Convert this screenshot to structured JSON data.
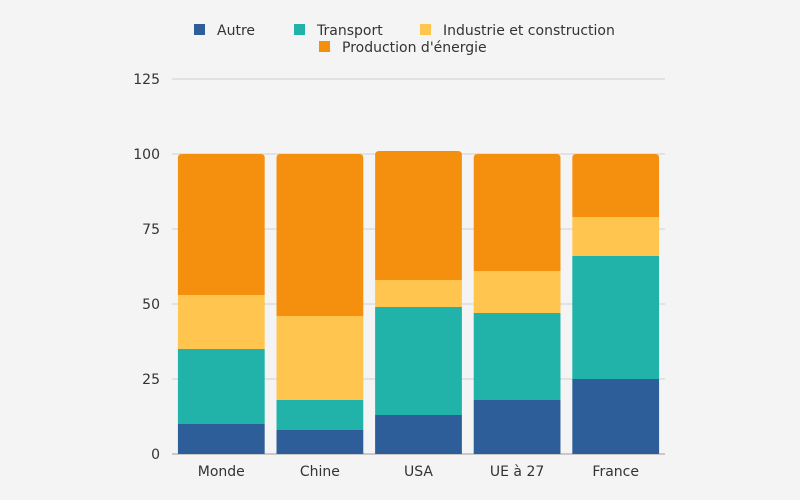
{
  "chart_data": {
    "type": "bar",
    "stacked": true,
    "title": "",
    "xlabel": "",
    "ylabel": "",
    "categories": [
      "Monde",
      "Chine",
      "USA",
      "UE à 27",
      "France"
    ],
    "ylim": [
      0,
      125
    ],
    "yticks": [
      0,
      25,
      50,
      75,
      100,
      125
    ],
    "grid": true,
    "legend_position": "top",
    "series": [
      {
        "name": "Autre",
        "color": "#2e5e99",
        "values": [
          10,
          8,
          13,
          18,
          25
        ]
      },
      {
        "name": "Transport",
        "color": "#21b3aa",
        "values": [
          25,
          10,
          36,
          29,
          41
        ]
      },
      {
        "name": "Industrie et construction",
        "color": "#ffc54f",
        "values": [
          18,
          28,
          9,
          14,
          13
        ]
      },
      {
        "name": "Production d'énergie",
        "color": "#f5900f",
        "values": [
          47,
          54,
          43,
          39,
          21
        ]
      }
    ]
  }
}
